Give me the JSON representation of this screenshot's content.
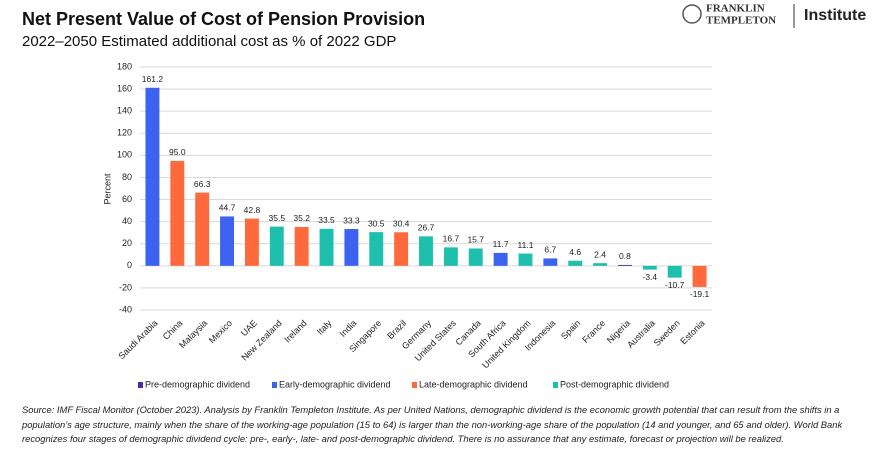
{
  "chart_data": {
    "type": "bar",
    "title": "Net Present Value of Cost of Pension Provision",
    "subtitle": "2022–2050 Estimated additional cost as % of 2022 GDP",
    "y_label": "Percent",
    "categories": [
      "Saudi Arabia",
      "China",
      "Malaysia",
      "Mexico",
      "UAE",
      "New Zealand",
      "Ireland",
      "Italy",
      "India",
      "Singapore",
      "Brazil",
      "Germany",
      "United States",
      "Canada",
      "South Africa",
      "United Kingdom",
      "Indonesia",
      "Spain",
      "France",
      "Nigeria",
      "Australia",
      "Sweden",
      "Estonia"
    ],
    "series": [
      {
        "name": "Pre-demographic dividend",
        "color": "#4b2aa8",
        "values": [
          null,
          null,
          null,
          null,
          null,
          null,
          null,
          null,
          null,
          null,
          null,
          null,
          null,
          null,
          null,
          null,
          null,
          null,
          null,
          0.8,
          null,
          null,
          null
        ],
        "value_labels": [
          null,
          null,
          null,
          null,
          null,
          null,
          null,
          null,
          null,
          null,
          null,
          null,
          null,
          null,
          null,
          null,
          null,
          null,
          null,
          "0.8",
          null,
          null,
          null
        ]
      },
      {
        "name": "Early-demographic dividend",
        "color": "#3b63f0",
        "values": [
          161.2,
          null,
          null,
          44.7,
          null,
          null,
          null,
          null,
          33.3,
          null,
          null,
          null,
          null,
          null,
          11.7,
          null,
          6.7,
          null,
          null,
          null,
          null,
          null,
          null
        ],
        "value_labels": [
          "161.2",
          null,
          null,
          "44.7",
          null,
          null,
          null,
          null,
          "33.3",
          null,
          null,
          null,
          null,
          null,
          "11.7",
          null,
          "6.7",
          null,
          null,
          null,
          null,
          null,
          null
        ]
      },
      {
        "name": "Late-demographic dividend",
        "color": "#ff6a3d",
        "values": [
          null,
          95.0,
          66.3,
          null,
          42.8,
          null,
          35.2,
          null,
          null,
          null,
          30.4,
          null,
          null,
          null,
          null,
          null,
          null,
          null,
          null,
          null,
          null,
          null,
          -19.1
        ],
        "value_labels": [
          null,
          "95.0",
          "66.3",
          null,
          "42.8",
          null,
          "35.2",
          null,
          null,
          null,
          "30.4",
          null,
          null,
          null,
          null,
          null,
          null,
          null,
          null,
          null,
          null,
          null,
          "-19.1"
        ]
      },
      {
        "name": "Post-demographic dividend",
        "color": "#1fbfae",
        "values": [
          null,
          null,
          null,
          null,
          null,
          35.5,
          null,
          33.5,
          null,
          30.5,
          null,
          26.7,
          16.7,
          15.7,
          null,
          11.1,
          null,
          4.6,
          2.4,
          null,
          -3.4,
          -10.7,
          null
        ],
        "value_labels": [
          null,
          null,
          null,
          null,
          null,
          "35.5",
          null,
          "33.5",
          null,
          "30.5",
          null,
          "26.7",
          "16.7",
          "15.7",
          null,
          "11.1",
          null,
          "4.6",
          "2.4",
          null,
          "-3.4",
          "-10.7",
          null
        ]
      }
    ],
    "ylim": [
      -40,
      180
    ],
    "yticks": [
      -40,
      -20,
      0,
      20,
      40,
      60,
      80,
      100,
      120,
      140,
      160,
      180
    ],
    "grid": true,
    "legend": "bottom"
  },
  "logo": {
    "brand_line1": "FRANKLIN",
    "brand_line2": "TEMPLETON",
    "institute": "Institute"
  },
  "source": "Source: IMF Fiscal Monitor (October 2023). Analysis by Franklin Templeton Institute. As per United Nations, demographic dividend is the economic growth potential that can result from the shifts in a population’s age structure, mainly when the share of the working-age population (15 to 64) is larger than the non-working-age share of the population (14 and younger, and 65 and older). World Bank recognizes four stages of demographic dividend cycle: pre-, early-, late- and post-demographic dividend. There is no assurance that any estimate, forecast or projection will be realized."
}
